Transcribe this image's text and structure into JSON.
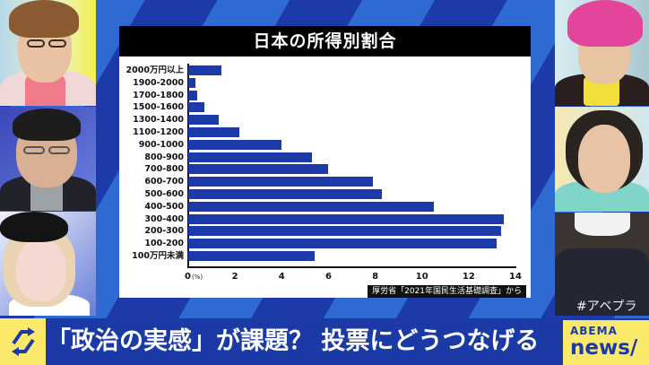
{
  "chart_data": {
    "type": "bar",
    "orientation": "horizontal",
    "title": "日本の所得別割合",
    "xlabel": "(%)",
    "ylabel": "",
    "categories": [
      "2000万円以上",
      "1900-2000",
      "1700-1800",
      "1500-1600",
      "1300-1400",
      "1100-1200",
      "900-1000",
      "800-900",
      "700-800",
      "600-700",
      "500-600",
      "400-500",
      "300-400",
      "200-300",
      "100-200",
      "100万円未満"
    ],
    "values": [
      1.4,
      0.3,
      0.4,
      0.7,
      1.3,
      2.2,
      4.0,
      5.3,
      6.0,
      7.9,
      8.3,
      10.5,
      13.5,
      13.4,
      13.2,
      5.4
    ],
    "xlim": [
      0,
      14
    ],
    "xticks": [
      0,
      2,
      4,
      6,
      8,
      10,
      12,
      14
    ],
    "grid": false,
    "legend": null,
    "source": "厚労省「2021年国民生活基礎調査」から",
    "bar_color": "#1c3aa8"
  },
  "chart": {
    "title": "日本の所得別割合",
    "x_unit": "(%)",
    "source": "厚労省「2021年国民生活基礎調査」から",
    "x_ticks": [
      "0",
      "2",
      "4",
      "6",
      "8",
      "10",
      "12",
      "14"
    ],
    "bars": [
      {
        "label": "2000万円以上",
        "value": 1.4
      },
      {
        "label": "1900-2000",
        "value": 0.3
      },
      {
        "label": "1700-1800",
        "value": 0.4
      },
      {
        "label": "1500-1600",
        "value": 0.7
      },
      {
        "label": "1300-1400",
        "value": 1.3
      },
      {
        "label": "1100-1200",
        "value": 2.2
      },
      {
        "label": "900-1000",
        "value": 4.0
      },
      {
        "label": "800-900",
        "value": 5.3
      },
      {
        "label": "700-800",
        "value": 6.0
      },
      {
        "label": "600-700",
        "value": 7.9
      },
      {
        "label": "500-600",
        "value": 8.3
      },
      {
        "label": "400-500",
        "value": 10.5
      },
      {
        "label": "300-400",
        "value": 13.5
      },
      {
        "label": "200-300",
        "value": 13.4
      },
      {
        "label": "100-200",
        "value": 13.2
      },
      {
        "label": "100万円未満",
        "value": 5.4
      }
    ]
  },
  "caption": {
    "icon": "refresh-cycle-icon",
    "text": "「政治の実感」が課題？ 投票にどうつなげる"
  },
  "overlay": {
    "hashtag": "#アベプラ"
  },
  "logo": {
    "top": "ABEMA",
    "bottom": "news/"
  },
  "colors": {
    "brand_blue": "#1b3aa6",
    "stripe_light": "#2f6ad2",
    "accent_yellow": "#fbe96c",
    "bar": "#1c3aa8"
  },
  "panels": {
    "left": [
      "panelist-1",
      "panelist-2",
      "panelist-3"
    ],
    "right": [
      "panelist-4",
      "panelist-5",
      "panelist-6"
    ]
  }
}
